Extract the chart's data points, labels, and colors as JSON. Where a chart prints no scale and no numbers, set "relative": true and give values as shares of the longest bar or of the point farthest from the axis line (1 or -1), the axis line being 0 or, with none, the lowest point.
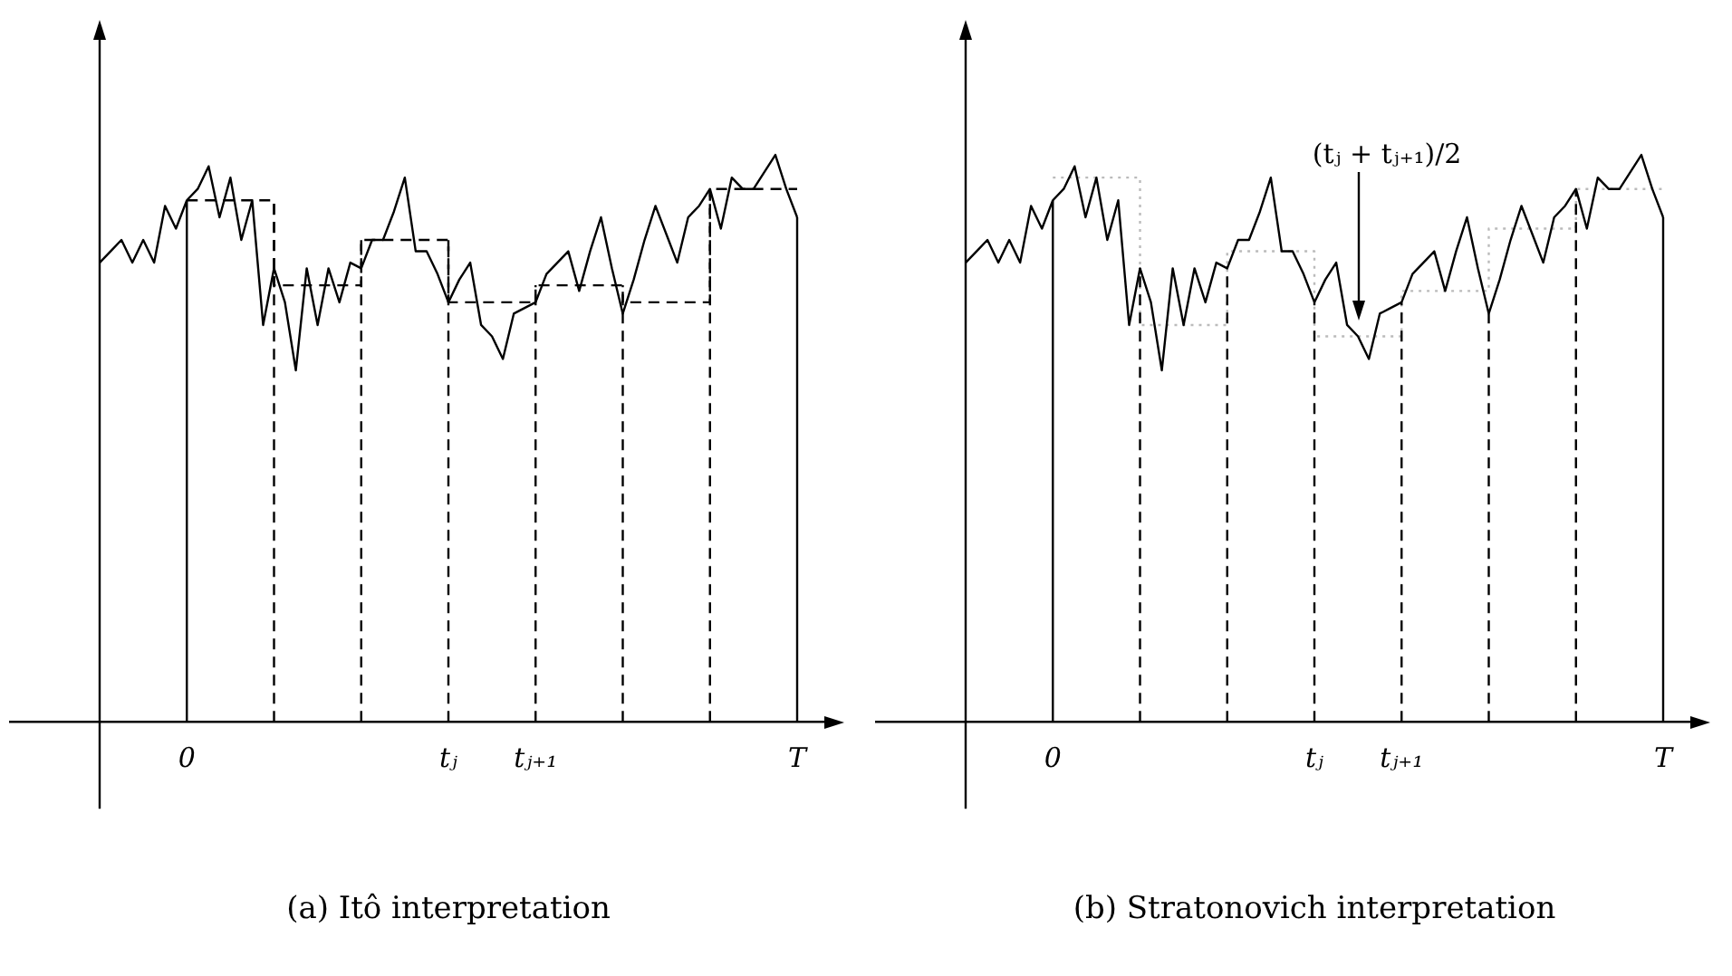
{
  "chart_data": [
    {
      "type": "line",
      "title": "(a) Itô interpretation",
      "relative": true,
      "grid": "x",
      "legend": false,
      "categories": [
        null,
        null,
        null,
        null,
        null,
        null,
        null,
        null,
        "0",
        null,
        null,
        null,
        null,
        null,
        null,
        null,
        null,
        null,
        null,
        null,
        null,
        null,
        null,
        null,
        null,
        null,
        null,
        null,
        null,
        null,
        null,
        null,
        "tⱼ",
        null,
        null,
        null,
        null,
        null,
        null,
        null,
        "tⱼ₊₁",
        null,
        null,
        null,
        null,
        null,
        null,
        null,
        null,
        null,
        null,
        null,
        null,
        null,
        null,
        null,
        null,
        null,
        null,
        null,
        null,
        null,
        null,
        null,
        "T"
      ],
      "series": [
        {
          "type": "line",
          "color": "#000000",
          "line_style": "solid",
          "values": [
            0.81,
            0.83,
            0.85,
            0.81,
            0.85,
            0.81,
            0.91,
            0.87,
            0.92,
            0.94,
            0.98,
            0.89,
            0.96,
            0.85,
            0.92,
            0.7,
            0.8,
            0.74,
            0.62,
            0.8,
            0.7,
            0.8,
            0.74,
            0.81,
            0.8,
            0.85,
            0.85,
            0.9,
            0.96,
            0.83,
            0.83,
            0.79,
            0.74,
            0.78,
            0.81,
            0.7,
            0.68,
            0.64,
            0.72,
            0.73,
            0.74,
            0.79,
            0.81,
            0.83,
            0.76,
            0.83,
            0.89,
            0.8,
            0.72,
            0.78,
            0.85,
            0.91,
            0.86,
            0.81,
            0.89,
            0.91,
            0.94,
            0.87,
            0.96,
            0.94,
            0.94,
            0.97,
            1.0,
            0.94,
            0.89
          ]
        },
        {
          "type": "step",
          "color": "#000000",
          "line_style": "dashed",
          "values": [
            null,
            null,
            null,
            null,
            null,
            null,
            null,
            null,
            0.92,
            0.92,
            0.92,
            0.92,
            0.92,
            0.92,
            0.92,
            0.92,
            0.77,
            0.77,
            0.77,
            0.77,
            0.77,
            0.77,
            0.77,
            0.77,
            0.85,
            0.85,
            0.85,
            0.85,
            0.85,
            0.85,
            0.85,
            0.85,
            0.74,
            0.74,
            0.74,
            0.74,
            0.74,
            0.74,
            0.74,
            0.74,
            0.77,
            0.77,
            0.77,
            0.77,
            0.77,
            0.77,
            0.77,
            0.77,
            0.74,
            0.74,
            0.74,
            0.74,
            0.74,
            0.74,
            0.74,
            0.74,
            0.94,
            0.94,
            0.94,
            0.94,
            0.94,
            0.94,
            0.94,
            0.94,
            0.94
          ]
        }
      ]
    },
    {
      "type": "line",
      "title": "(b) Stratonovich interpretation",
      "relative": true,
      "grid": "x",
      "legend": false,
      "categories": [
        null,
        null,
        null,
        null,
        null,
        null,
        null,
        null,
        "0",
        null,
        null,
        null,
        null,
        null,
        null,
        null,
        null,
        null,
        null,
        null,
        null,
        null,
        null,
        null,
        null,
        null,
        null,
        null,
        null,
        null,
        null,
        null,
        "tⱼ",
        null,
        null,
        null,
        null,
        null,
        null,
        null,
        "tⱼ₊₁",
        null,
        null,
        null,
        null,
        null,
        null,
        null,
        null,
        null,
        null,
        null,
        null,
        null,
        null,
        null,
        null,
        null,
        null,
        null,
        null,
        null,
        null,
        null,
        "T"
      ],
      "annotations": [
        "(tⱼ + tⱼ₊₁)/2"
      ],
      "series": [
        {
          "type": "line",
          "color": "#000000",
          "line_style": "solid",
          "values": [
            0.81,
            0.83,
            0.85,
            0.81,
            0.85,
            0.81,
            0.91,
            0.87,
            0.92,
            0.94,
            0.98,
            0.89,
            0.96,
            0.85,
            0.92,
            0.7,
            0.8,
            0.74,
            0.62,
            0.8,
            0.7,
            0.8,
            0.74,
            0.81,
            0.8,
            0.85,
            0.85,
            0.9,
            0.96,
            0.83,
            0.83,
            0.79,
            0.74,
            0.78,
            0.81,
            0.7,
            0.68,
            0.64,
            0.72,
            0.73,
            0.74,
            0.79,
            0.81,
            0.83,
            0.76,
            0.83,
            0.89,
            0.8,
            0.72,
            0.78,
            0.85,
            0.91,
            0.86,
            0.81,
            0.89,
            0.91,
            0.94,
            0.87,
            0.96,
            0.94,
            0.94,
            0.97,
            1.0,
            0.94,
            0.89
          ]
        },
        {
          "type": "step",
          "color": "#bbbbbb",
          "line_style": "dotted",
          "values": [
            null,
            null,
            null,
            null,
            null,
            null,
            null,
            null,
            0.96,
            0.96,
            0.96,
            0.96,
            0.96,
            0.96,
            0.96,
            0.96,
            0.7,
            0.7,
            0.7,
            0.7,
            0.7,
            0.7,
            0.7,
            0.7,
            0.83,
            0.83,
            0.83,
            0.83,
            0.83,
            0.83,
            0.83,
            0.83,
            0.68,
            0.68,
            0.68,
            0.68,
            0.68,
            0.68,
            0.68,
            0.68,
            0.76,
            0.76,
            0.76,
            0.76,
            0.76,
            0.76,
            0.76,
            0.76,
            0.87,
            0.87,
            0.87,
            0.87,
            0.87,
            0.87,
            0.87,
            0.87,
            0.94,
            0.94,
            0.94,
            0.94,
            0.94,
            0.94,
            0.94,
            0.94,
            0.94
          ]
        }
      ]
    }
  ]
}
